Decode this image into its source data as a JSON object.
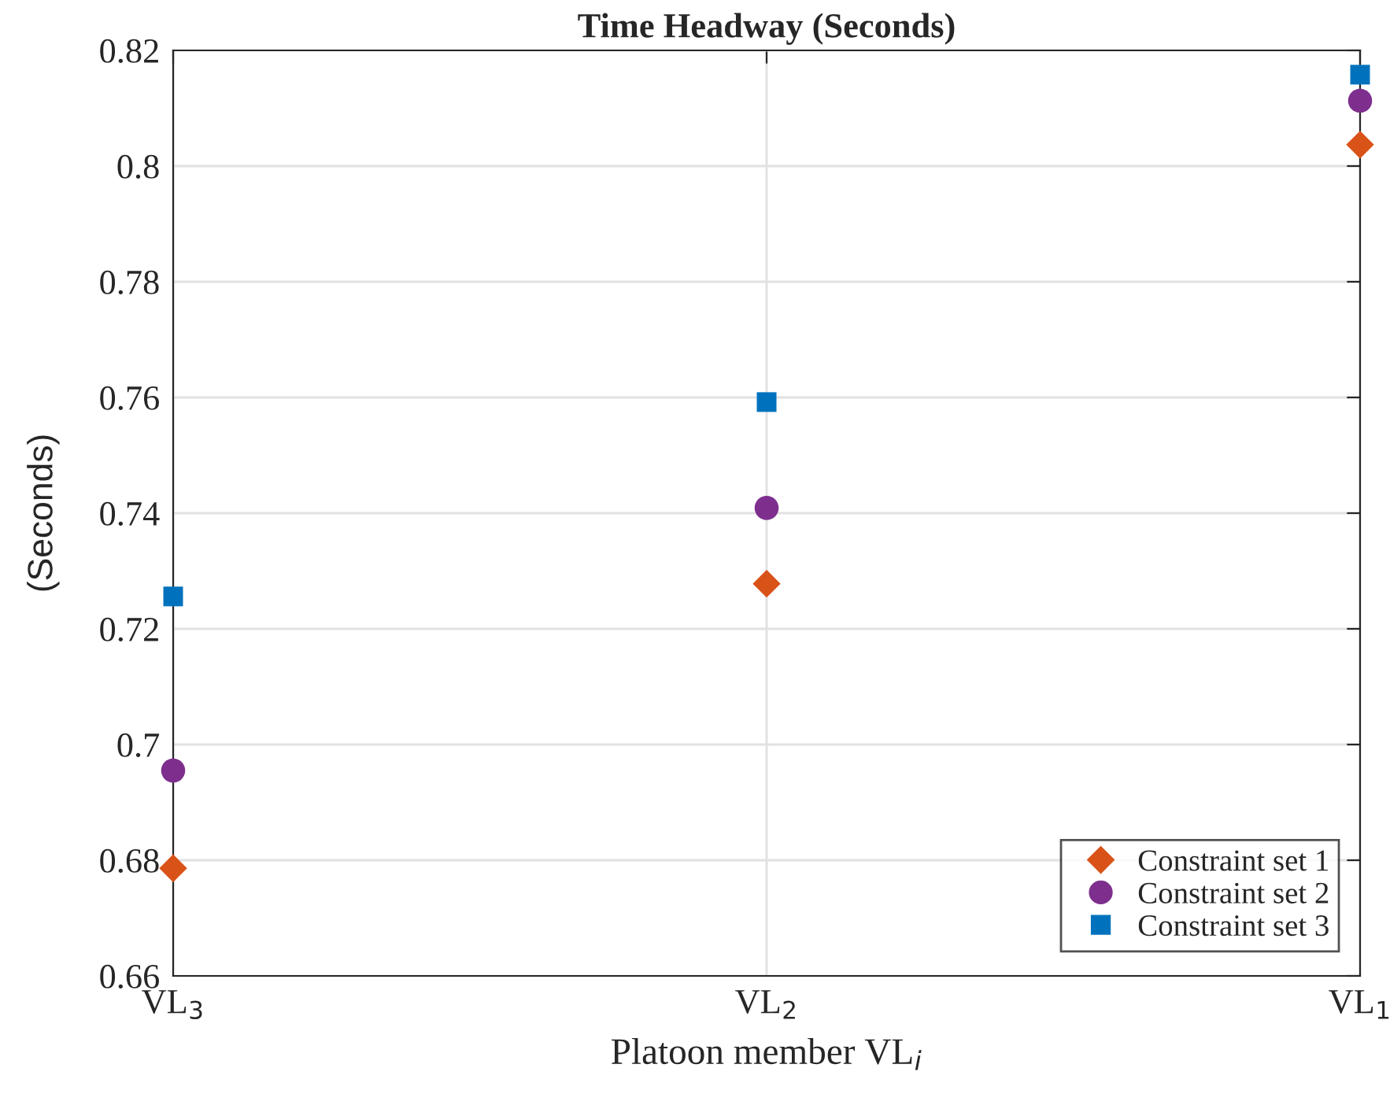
{
  "chart_data": {
    "type": "scatter",
    "title": "Time Headway (Seconds)",
    "xlabel": "Platoon member VL$_{i}$",
    "ylabel": "(Seconds)",
    "categories": [
      "VL$_{3}$",
      "VL$_{2}$",
      "VL$_{1}$"
    ],
    "series": [
      {
        "name": "Constraint set 1",
        "color": "#d95319",
        "marker": "diamond",
        "values": [
          0.6786,
          0.7278,
          0.8037
        ]
      },
      {
        "name": "Constraint set 2",
        "color": "#7e2f8e",
        "marker": "circle",
        "values": [
          0.6955,
          0.7409,
          0.8113
        ]
      },
      {
        "name": "Constraint set 3",
        "color": "#0072bd",
        "marker": "square",
        "values": [
          0.7256,
          0.7592,
          0.8158
        ]
      }
    ],
    "ylim": [
      0.66,
      0.82
    ],
    "yticks": [
      0.66,
      0.68,
      0.7,
      0.72,
      0.74,
      0.76,
      0.78,
      0.8,
      0.82
    ],
    "grid": true,
    "legend": "bottom right"
  }
}
